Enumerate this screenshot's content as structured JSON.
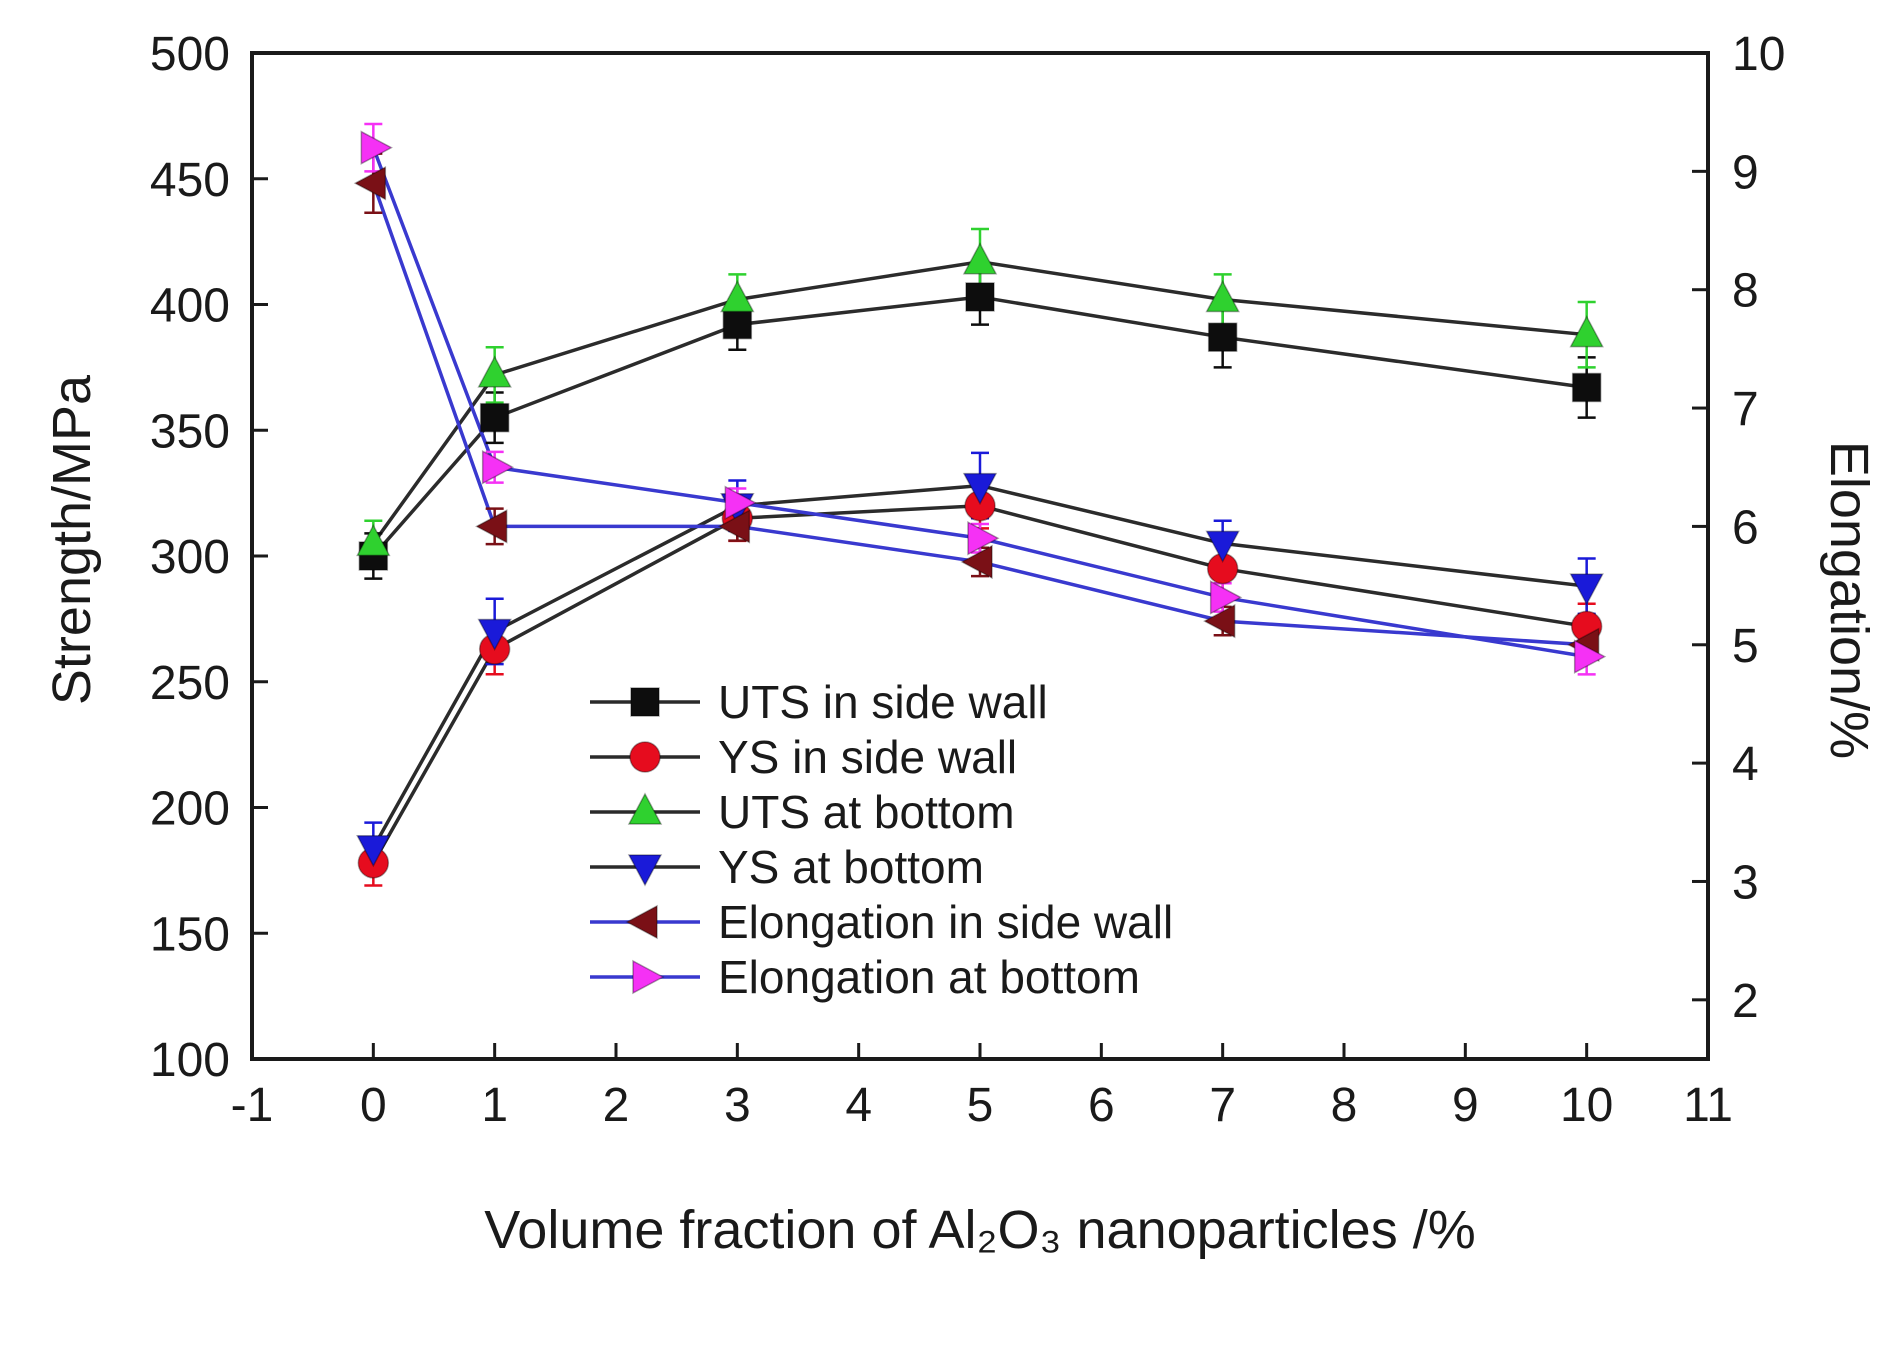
{
  "chart_data": {
    "type": "line",
    "title": "",
    "xlabel": "Volume fraction of Al₂O₃ nanoparticles /%",
    "ylabel_left": "Strength/MPa",
    "ylabel_right": "Elongation/%",
    "x": [
      0,
      1,
      3,
      5,
      7,
      10
    ],
    "xlim": [
      -1,
      11
    ],
    "xticks": [
      -1,
      0,
      1,
      2,
      3,
      4,
      5,
      6,
      7,
      8,
      9,
      10,
      11
    ],
    "ylim_left": [
      100,
      500
    ],
    "yticks_left": [
      100,
      150,
      200,
      250,
      300,
      350,
      400,
      450,
      500
    ],
    "ylim_right": [
      1.5,
      10
    ],
    "yticks_right": [
      2,
      3,
      4,
      5,
      6,
      7,
      8,
      9,
      10
    ],
    "grid": false,
    "legend_position": "inside-center-left",
    "series": [
      {
        "name": "UTS in side wall",
        "axis": "left",
        "marker": "square",
        "marker_color": "#0d0d0d",
        "line_color": "#2b2b2b",
        "values": [
          300,
          355,
          392,
          403,
          387,
          367
        ],
        "yerr": [
          9,
          10,
          10,
          11,
          12,
          12
        ]
      },
      {
        "name": "YS in side wall",
        "axis": "left",
        "marker": "circle",
        "marker_color": "#e60c1e",
        "line_color": "#2b2b2b",
        "values": [
          178,
          263,
          315,
          320,
          295,
          272
        ],
        "yerr": [
          9,
          10,
          9,
          9,
          10,
          9
        ]
      },
      {
        "name": "UTS at bottom",
        "axis": "left",
        "marker": "triangle-up",
        "marker_color": "#2fd12f",
        "line_color": "#2b2b2b",
        "values": [
          305,
          372,
          402,
          417,
          402,
          388
        ],
        "yerr": [
          9,
          11,
          10,
          13,
          10,
          13
        ]
      },
      {
        "name": "YS at bottom",
        "axis": "left",
        "marker": "triangle-down",
        "marker_color": "#1a1ad9",
        "line_color": "#2b2b2b",
        "values": [
          184,
          270,
          320,
          328,
          305,
          288
        ],
        "yerr": [
          10,
          13,
          10,
          13,
          9,
          11
        ]
      },
      {
        "name": "Elongation in side wall",
        "axis": "right",
        "marker": "triangle-left",
        "marker_color": "#7a1016",
        "line_color": "#3939cf",
        "values": [
          8.9,
          6.0,
          6.0,
          5.7,
          5.2,
          5.0
        ],
        "yerr": [
          0.25,
          0.15,
          0.12,
          0.12,
          0.12,
          0.12
        ]
      },
      {
        "name": "Elongation at bottom",
        "axis": "right",
        "marker": "triangle-right",
        "marker_color": "#f531f5",
        "line_color": "#3939cf",
        "values": [
          9.2,
          6.5,
          6.2,
          5.9,
          5.4,
          4.9
        ],
        "yerr": [
          0.2,
          0.13,
          0.12,
          0.12,
          0.12,
          0.15
        ]
      }
    ]
  }
}
